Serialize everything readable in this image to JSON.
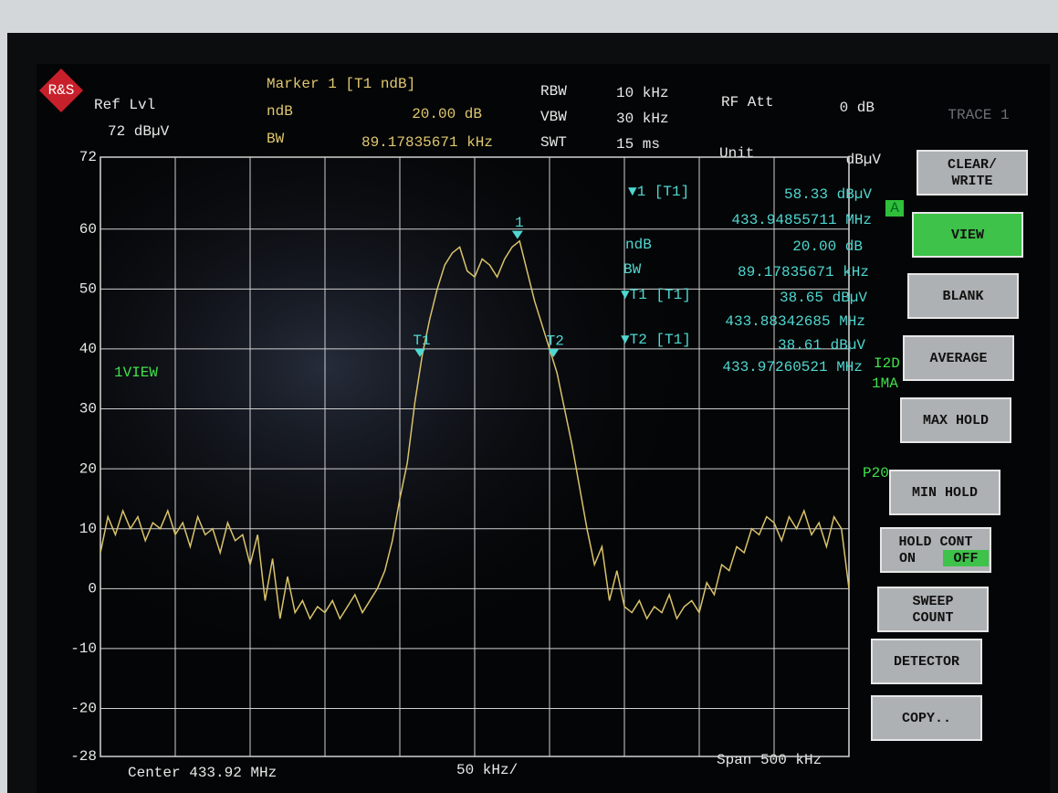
{
  "header": {
    "ref_lvl_label": "Ref Lvl",
    "ref_lvl": "72 dBµV",
    "marker_title": "Marker 1 [T1 ndB]",
    "ndb_label": "ndB",
    "ndb": "20.00 dB",
    "bw_label": "BW",
    "bw": "89.17835671 kHz",
    "rbw_label": "RBW",
    "rbw": "10 kHz",
    "vbw_label": "VBW",
    "vbw": "30 kHz",
    "swt_label": "SWT",
    "swt": "15 ms",
    "rf_att_label": "RF Att",
    "rf_att": "0 dB",
    "unit_label": "Unit",
    "unit": "dBµV",
    "trace_label": "TRACE 1"
  },
  "footer": {
    "center": "Center 433.92 MHz",
    "div": "50 kHz/",
    "span": "Span 500 kHz"
  },
  "side_labels": {
    "trace_mode": "1VIEW",
    "a": "A",
    "i2d": "I2D",
    "ma": "1MA",
    "p20": "P20"
  },
  "softkeys": [
    {
      "lines": [
        "CLEAR/",
        "WRITE"
      ]
    },
    {
      "lines": [
        "VIEW"
      ],
      "active": true
    },
    {
      "lines": [
        "BLANK"
      ]
    },
    {
      "lines": [
        "AVERAGE"
      ]
    },
    {
      "lines": [
        "MAX HOLD"
      ]
    },
    {
      "lines": [
        "MIN HOLD"
      ]
    },
    {
      "lines": [
        "HOLD CONT"
      ],
      "options": [
        "ON",
        "OFF"
      ],
      "selected_option": 1
    },
    {
      "lines": [
        "SWEEP",
        "COUNT"
      ]
    },
    {
      "lines": [
        "DETECTOR"
      ]
    },
    {
      "lines": [
        "COPY.."
      ]
    }
  ],
  "chart_data": {
    "type": "line",
    "color": "#d9c36a",
    "grid": true,
    "ylim": [
      -28,
      72
    ],
    "yticks": [
      72,
      60,
      50,
      40,
      30,
      20,
      10,
      0,
      -10,
      -20,
      -28
    ],
    "xlim": [
      433.67,
      434.17
    ],
    "x": [
      433.67,
      433.675,
      433.68,
      433.685,
      433.69,
      433.695,
      433.7,
      433.705,
      433.71,
      433.715,
      433.72,
      433.725,
      433.73,
      433.735,
      433.74,
      433.745,
      433.75,
      433.755,
      433.76,
      433.765,
      433.77,
      433.775,
      433.78,
      433.785,
      433.79,
      433.795,
      433.8,
      433.805,
      433.81,
      433.815,
      433.82,
      433.825,
      433.83,
      433.835,
      433.84,
      433.845,
      433.85,
      433.855,
      433.86,
      433.865,
      433.87,
      433.875,
      433.88,
      433.885,
      433.89,
      433.895,
      433.9,
      433.905,
      433.91,
      433.915,
      433.92,
      433.925,
      433.93,
      433.935,
      433.94,
      433.945,
      433.95,
      433.955,
      433.96,
      433.965,
      433.97,
      433.975,
      433.98,
      433.985,
      433.99,
      433.995,
      434,
      434.005,
      434.01,
      434.015,
      434.02,
      434.025,
      434.03,
      434.035,
      434.04,
      434.045,
      434.05,
      434.055,
      434.06,
      434.065,
      434.07,
      434.075,
      434.08,
      434.085,
      434.09,
      434.095,
      434.1,
      434.105,
      434.11,
      434.115,
      434.12,
      434.125,
      434.13,
      434.135,
      434.14,
      434.145,
      434.15,
      434.155,
      434.16,
      434.165,
      434.17
    ],
    "values": [
      6,
      12,
      9,
      13,
      10,
      12,
      8,
      11,
      10,
      13,
      9,
      11,
      7,
      12,
      9,
      10,
      6,
      11,
      8,
      9,
      4,
      9,
      -2,
      5,
      -5,
      2,
      -4,
      -2,
      -5,
      -3,
      -4,
      -2,
      -5,
      -3,
      -1,
      -4,
      -2,
      0,
      3,
      8,
      15,
      21,
      31,
      39,
      45,
      50,
      54,
      56,
      57,
      53,
      52,
      55,
      54,
      52,
      55,
      57,
      58,
      53,
      48,
      44,
      40,
      36,
      30,
      24,
      17,
      10,
      4,
      7,
      -2,
      3,
      -3,
      -4,
      -2,
      -5,
      -3,
      -4,
      -1,
      -5,
      -3,
      -2,
      -4,
      1,
      -1,
      4,
      3,
      7,
      6,
      10,
      9,
      12,
      11,
      8,
      12,
      10,
      13,
      9,
      11,
      7,
      12,
      10,
      0
    ],
    "markers": [
      {
        "label": "1",
        "header": "▼1 [T1]",
        "level": {
          "value": 58.33,
          "label": "58.33 dBµV"
        },
        "freq": {
          "value": 433.94855711,
          "label": "433.94855711 MHz"
        }
      },
      {
        "label": "T1",
        "header": "▼T1 [T1]",
        "level": {
          "value": 38.65,
          "label": "38.65 dBµV"
        },
        "freq": {
          "value": 433.88342685,
          "label": "433.88342685 MHz"
        }
      },
      {
        "label": "T2",
        "header": "▼T2 [T1]",
        "level": {
          "value": 38.61,
          "label": "38.61 dBµV"
        },
        "freq": {
          "value": 433.97260521,
          "label": "433.97260521 MHz"
        }
      }
    ],
    "marker_ndb": {
      "ndb_label": "ndB",
      "ndb": "20.00 dB",
      "bw_label": "BW",
      "bw": "89.17835671 kHz"
    }
  }
}
